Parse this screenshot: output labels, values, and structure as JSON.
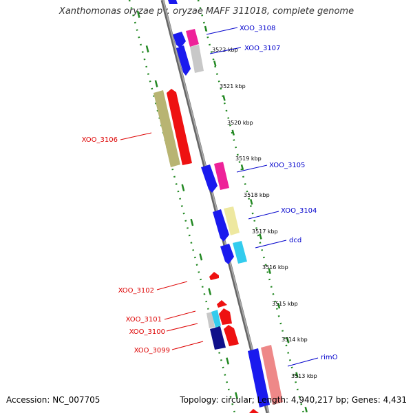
{
  "title": "Xanthomonas oryzae pv. oryzae MAFF 311018, complete genome",
  "accession": "Accession: NC_007705",
  "summary": "Topology: circular; Length: 4,940,217 bp; Genes: 4,431",
  "scale_labels": [
    "3522 kbp",
    "3521 kbp",
    "3520 kbp",
    "3519 kbp",
    "3518 kbp",
    "3517 kbp",
    "3516 kbp",
    "3515 kbp",
    "3514 kbp",
    "3513 kbp"
  ],
  "gene_labels": {
    "XOO_3108": "XOO_3108",
    "XOO_3107": "XOO_3107",
    "XOO_3106": "XOO_3106",
    "XOO_3105": "XOO_3105",
    "XOO_3104": "XOO_3104",
    "dcd": "dcd",
    "XOO_3102": "XOO_3102",
    "XOO_3101": "XOO_3101",
    "XOO_3100": "XOO_3100",
    "XOO_3099": "XOO_3099",
    "rimO": "rimO"
  },
  "colors": {
    "backbone": "#888888",
    "dotted_guide": "#228822",
    "forward_label": "#0000cc",
    "reverse_label": "#dd0000",
    "blue": "#1a1aee",
    "red": "#ee1111",
    "magenta": "#ee2299",
    "olive": "#b8b472",
    "yellow": "#eee8a0",
    "cyan": "#33ccee",
    "gray": "#c8c8c8",
    "navy": "#10108a",
    "pink": "#ee8888"
  }
}
